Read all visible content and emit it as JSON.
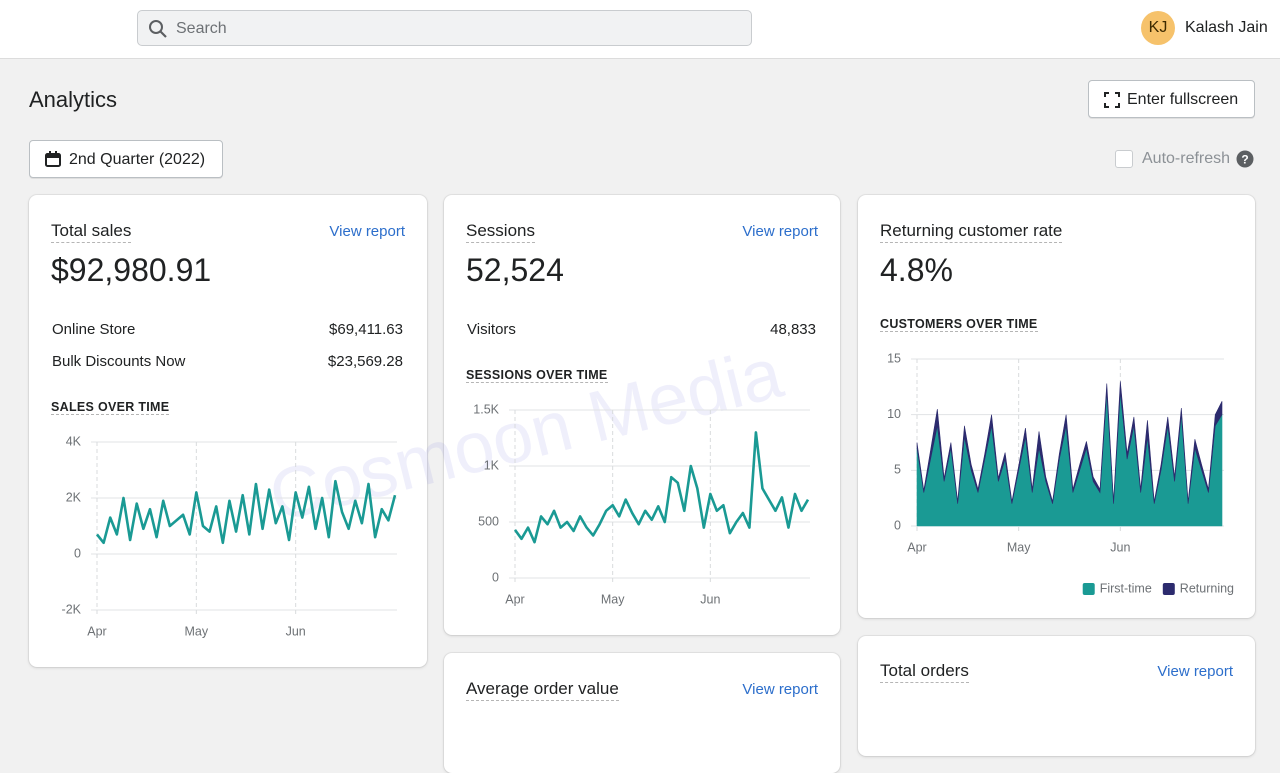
{
  "header": {
    "search_placeholder": "Search",
    "avatar_initials": "KJ",
    "user_name": "Kalash Jain"
  },
  "page": {
    "title": "Analytics",
    "fullscreen_button": "Enter fullscreen",
    "date_range": "2nd Quarter (2022)",
    "auto_refresh": "Auto-refresh"
  },
  "watermark": "Cosmoon Media",
  "cards": [
    {
      "title": "Total sales",
      "link": "View report",
      "value": "$92,980.91",
      "rows": [
        {
          "label": "Online Store",
          "value": "$69,411.63"
        },
        {
          "label": "Bulk Discounts Now",
          "value": "$23,569.28"
        }
      ],
      "chart_data": {
        "type": "line",
        "title": "SALES OVER TIME",
        "color": "#1a9a94",
        "values": [
          700,
          400,
          1300,
          700,
          2000,
          500,
          1800,
          900,
          1600,
          600,
          1900,
          1000,
          1200,
          1400,
          700,
          2200,
          1000,
          800,
          1700,
          400,
          1900,
          800,
          2100,
          700,
          2500,
          900,
          2300,
          1100,
          1700,
          500,
          2200,
          1300,
          2400,
          900,
          2000,
          600,
          2600,
          1500,
          900,
          1900,
          1100,
          2500,
          600,
          1600,
          1200,
          2100
        ],
        "xlim": [
          0,
          45
        ],
        "xticks": [
          {
            "value": 0,
            "label": "Apr"
          },
          {
            "value": 15,
            "label": "May"
          },
          {
            "value": 30,
            "label": "Jun"
          }
        ],
        "ylim": [
          -2000,
          4000
        ],
        "yticks": [
          {
            "value": -2000,
            "label": "-2K"
          },
          0,
          {
            "value": 2000,
            "label": "2K"
          },
          {
            "value": 4000,
            "label": "4K"
          }
        ],
        "grid": true
      }
    },
    {
      "title": "Sessions",
      "link": "View report",
      "value": "52,524",
      "rows": [
        {
          "label": "Visitors",
          "value": "48,833"
        }
      ],
      "chart_data": {
        "type": "line",
        "title": "SESSIONS OVER TIME",
        "color": "#1a9a94",
        "values": [
          430,
          350,
          450,
          320,
          550,
          480,
          600,
          450,
          500,
          420,
          550,
          450,
          380,
          480,
          600,
          650,
          550,
          700,
          580,
          480,
          600,
          520,
          640,
          500,
          900,
          850,
          600,
          1000,
          800,
          450,
          750,
          600,
          650,
          400,
          500,
          580,
          450,
          1300,
          800,
          700,
          600,
          720,
          450,
          750,
          600,
          700
        ],
        "xlim": [
          0,
          45
        ],
        "xticks": [
          {
            "value": 0,
            "label": "Apr"
          },
          {
            "value": 15,
            "label": "May"
          },
          {
            "value": 30,
            "label": "Jun"
          }
        ],
        "ylim": [
          0,
          1500
        ],
        "yticks": [
          0,
          500,
          {
            "value": 1000,
            "label": "1K"
          },
          {
            "value": 1500,
            "label": "1.5K"
          }
        ],
        "grid": true
      }
    },
    {
      "title": "Returning customer rate",
      "value": "4.8%",
      "chart_data": {
        "type": "area",
        "stacked": true,
        "title": "CUSTOMERS OVER TIME",
        "legend": "bottom-right",
        "series": [
          {
            "name": "First-time",
            "color": "#1a9a94",
            "values": [
              7,
              3,
              6,
              9,
              4,
              7,
              2,
              8,
              5,
              3,
              6,
              9,
              4,
              6,
              2,
              5,
              8,
              3,
              7,
              4,
              2,
              6,
              9,
              3,
              5,
              7,
              4,
              3,
              12,
              2,
              12,
              6,
              9,
              3,
              8,
              2,
              5,
              9,
              4,
              10,
              2,
              7,
              5,
              3,
              9,
              10
            ]
          },
          {
            "name": "Returning",
            "color": "#2c2b6e",
            "values": [
              0.5,
              0.2,
              0.8,
              1.5,
              0.3,
              0.5,
              0.2,
              1,
              0.5,
              0.3,
              0.5,
              1,
              0.3,
              0.6,
              0.2,
              0.4,
              0.8,
              0.3,
              1.5,
              0.4,
              0.2,
              0.5,
              1,
              0.3,
              0.5,
              0.6,
              0.4,
              0.3,
              0.8,
              0.2,
              1,
              0.5,
              0.8,
              0.3,
              1.5,
              0.2,
              0.5,
              0.8,
              0.4,
              0.6,
              0.2,
              0.8,
              0.5,
              0.3,
              1,
              1.2
            ]
          }
        ],
        "xlim": [
          0,
          45
        ],
        "xticks": [
          {
            "value": 0,
            "label": "Apr"
          },
          {
            "value": 15,
            "label": "May"
          },
          {
            "value": 30,
            "label": "Jun"
          }
        ],
        "ylim": [
          0,
          15
        ],
        "yticks": [
          0,
          5,
          10,
          15
        ],
        "grid": true
      }
    },
    {
      "title": "Average order value",
      "link": "View report"
    },
    {
      "title": "Total orders",
      "link": "View report"
    }
  ]
}
